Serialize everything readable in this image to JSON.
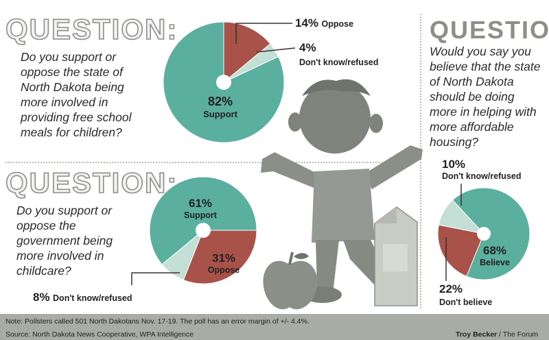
{
  "q1": {
    "heading": "QUESTION:",
    "text": "Do you support or oppose the state of North Dakota being more involved in providing free school meals for children?",
    "labels": {
      "oppose_pct": "14%",
      "oppose": "Oppose",
      "dk_pct": "4%",
      "dk": "Don't know/refused",
      "support_pct": "82%",
      "support": "Support"
    }
  },
  "q2": {
    "heading": "QUESTION:",
    "text": "Do you support or oppose the government being more involved in childcare?",
    "labels": {
      "support_pct": "61%",
      "support": "Support",
      "oppose_pct": "31%",
      "oppose": "Oppose",
      "dk_pct": "8%",
      "dk": "Don't know/refused"
    }
  },
  "q3": {
    "heading": "QUESTION:",
    "text": "Would you say you believe that the state of North Dakota should be doing more in helping with more affordable housing?",
    "labels": {
      "dk_pct": "10%",
      "dk": "Don't know/refused",
      "believe_pct": "68%",
      "believe": "Believe",
      "dontbelieve_pct": "22%",
      "dontbelieve": "Don't believe"
    }
  },
  "footer": {
    "note": "Note: Pollsters called 501 North Dakotans Nov. 17-19. The poll has an error margin of +/- 4.4%.",
    "source": "Source: North Dakota News Cooperative, WPA Intelligence",
    "credit_name": "Troy Becker",
    "credit_sep": " / ",
    "credit_org": "The Forum"
  },
  "colors": {
    "teal": "#5aaf9f",
    "red": "#a8524a",
    "light": "#c4dfd6",
    "gray": "#8b8f88"
  },
  "chart_data": [
    {
      "type": "pie",
      "title": "Do you support or oppose the state of North Dakota being more involved in providing free school meals for children?",
      "categories": [
        "Support",
        "Oppose",
        "Don't know/refused"
      ],
      "values": [
        82,
        14,
        4
      ],
      "unit": "%"
    },
    {
      "type": "pie",
      "title": "Do you support or oppose the government being more involved in childcare?",
      "categories": [
        "Support",
        "Oppose",
        "Don't know/refused"
      ],
      "values": [
        61,
        31,
        8
      ],
      "unit": "%"
    },
    {
      "type": "pie",
      "title": "Would you say you believe that the state of North Dakota should be doing more in helping with more affordable housing?",
      "categories": [
        "Believe",
        "Don't believe",
        "Don't know/refused"
      ],
      "values": [
        68,
        22,
        10
      ],
      "unit": "%"
    }
  ]
}
